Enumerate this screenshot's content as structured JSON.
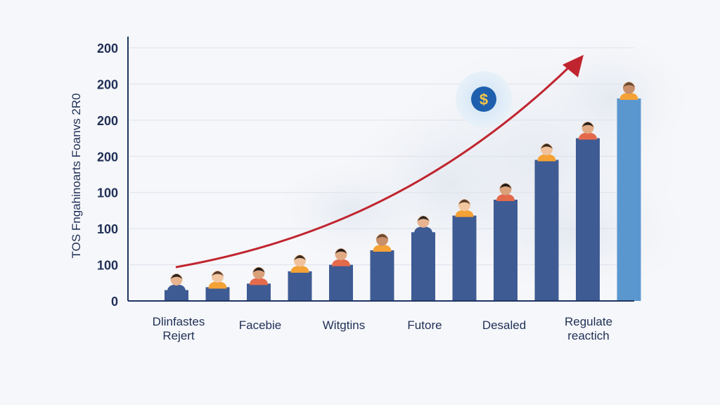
{
  "chart_data": {
    "type": "bar",
    "ylabel": "TOS Fngahinoarts Foanvs 2R0",
    "yticks": [
      "0",
      "100",
      "100",
      "100",
      "200",
      "200",
      "200",
      "200"
    ],
    "x_labels": [
      [
        "Dlinfastes",
        "Rejert"
      ],
      [
        "Facebie"
      ],
      [
        "Witgtins"
      ],
      [
        "Futore"
      ],
      [
        "Desaled"
      ],
      [
        "Regulate",
        "reactich"
      ]
    ],
    "values": [
      30,
      38,
      48,
      82,
      100,
      140,
      190,
      236,
      280,
      390,
      450,
      560
    ],
    "ylim": [
      0,
      700
    ],
    "grid": true,
    "trend_arrow": true,
    "colors": {
      "bar": "#3e5b93",
      "bar_highlight": "#5b97cf",
      "arrow": "#c0252f",
      "axis": "#1f3566",
      "text": "#1f2f56"
    },
    "icons": [
      "dollar-coin-icon",
      "person-avatar-icon"
    ]
  }
}
